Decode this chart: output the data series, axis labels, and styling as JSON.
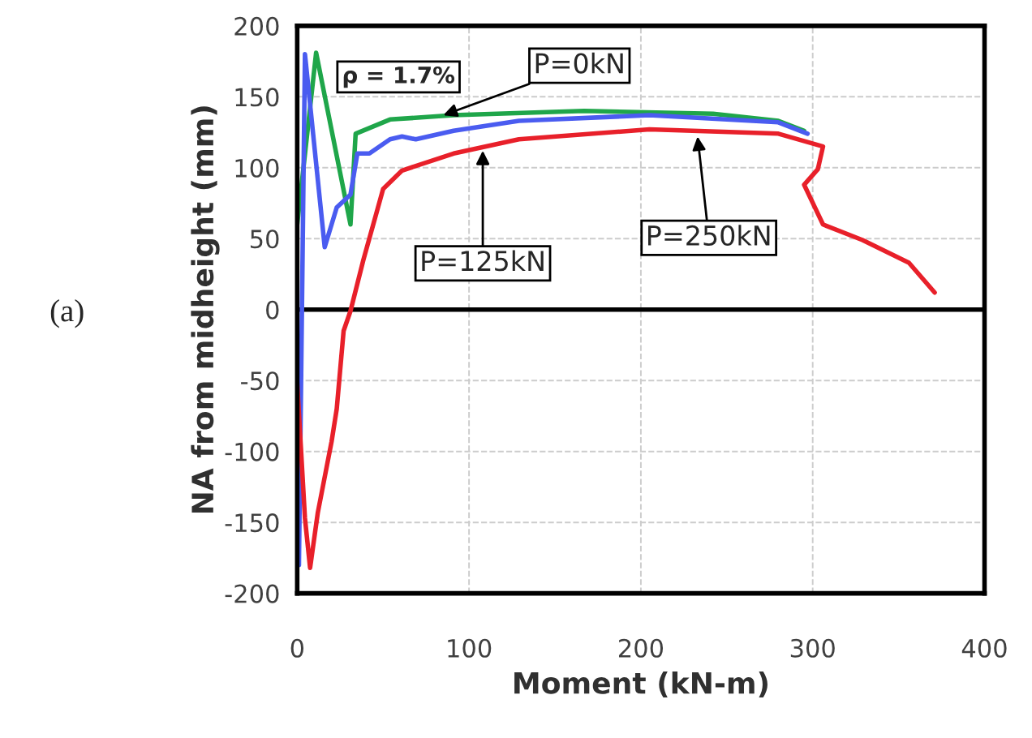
{
  "chart_data": {
    "type": "line",
    "xlabel": "Moment (kN-m)",
    "ylabel": "NA from midheight (mm)",
    "xlim": [
      0,
      400
    ],
    "xticks": [
      0,
      100,
      200,
      300,
      400
    ],
    "ylim": [
      -200,
      200
    ],
    "yticks": [
      -200,
      -150,
      -100,
      -50,
      0,
      50,
      100,
      150,
      200
    ],
    "grid": true,
    "line_style": "solid",
    "ref_lines": [
      {
        "axis": "y",
        "value": 0,
        "color": "#000000"
      }
    ],
    "series": [
      {
        "color": "#1fa64a",
        "x": [
          0,
          11,
          31,
          34,
          54,
          91,
          167,
          242,
          280,
          295
        ],
        "values": [
          60,
          181,
          60,
          124,
          134,
          137,
          140,
          138,
          133,
          126
        ]
      },
      {
        "color": "#4a5cf0",
        "x": [
          1,
          4.5,
          16,
          23,
          31,
          35,
          42,
          54,
          61,
          69,
          91,
          129,
          205,
          280,
          297
        ],
        "values": [
          -180,
          180,
          44,
          72,
          81,
          110,
          110,
          120,
          122,
          120,
          126,
          133,
          137,
          132,
          124
        ]
      },
      {
        "color": "#e8202a",
        "x": [
          0,
          4.5,
          7.5,
          12,
          20,
          23,
          27,
          31,
          38.5,
          50,
          61,
          91,
          129,
          205,
          280,
          306,
          303,
          295,
          306,
          329,
          356,
          371
        ],
        "values": [
          -52,
          -147,
          -182,
          -143,
          -93,
          -70,
          -15,
          -1,
          35,
          85,
          98,
          110,
          120,
          127,
          124,
          115,
          99,
          88,
          60,
          49,
          33,
          12
        ]
      }
    ],
    "annotations": [
      {
        "text": "P=0kN",
        "x": 85,
        "y": 137
      },
      {
        "text": "P=125kN",
        "x": 108,
        "y": 112
      },
      {
        "text": "P=250kN",
        "x": 233,
        "y": 122
      },
      "ρ = 1.7%",
      "(a)"
    ]
  }
}
